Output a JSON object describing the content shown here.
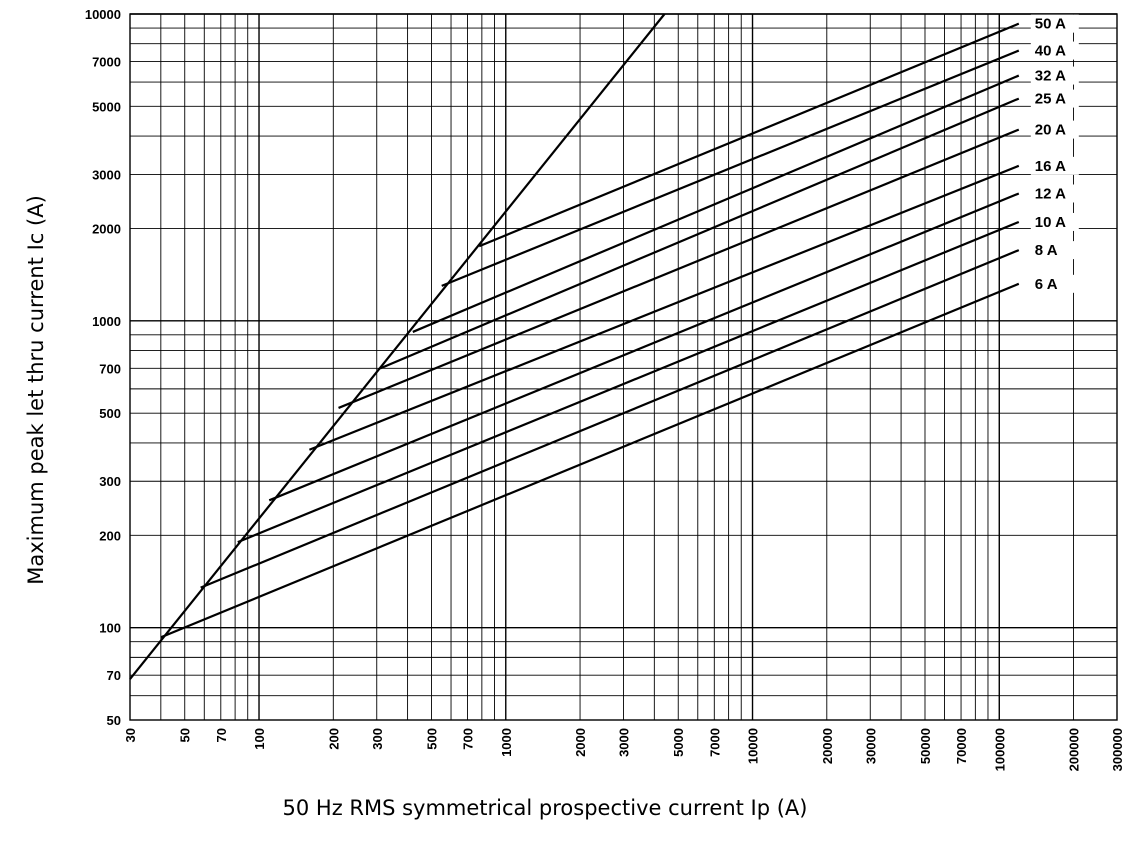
{
  "chart_data": {
    "type": "line",
    "title": "",
    "xlabel": "50 Hz RMS symmetrical prospective current Ip (A)",
    "ylabel": "Maximum peak let thru current Ic (A)",
    "x_scale": "log",
    "y_scale": "log",
    "xlim": [
      30,
      300000
    ],
    "ylim": [
      50,
      10000
    ],
    "grid": true,
    "x_tick_labels": [
      "30",
      "50",
      "70",
      "100",
      "200",
      "300",
      "500",
      "700",
      "1000",
      "2000",
      "3000",
      "5000",
      "7000",
      "10000",
      "20000",
      "30000",
      "50000",
      "70000",
      "100000",
      "200000",
      "300000"
    ],
    "y_tick_labels": [
      "50",
      "70",
      "100",
      "200",
      "300",
      "500",
      "700",
      "1000",
      "2000",
      "3000",
      "5000",
      "7000",
      "10000"
    ],
    "envelope": {
      "x": [
        30,
        4400
      ],
      "y": [
        68,
        10000
      ]
    },
    "series": [
      {
        "name": "50 A",
        "x": [
          780,
          120000
        ],
        "y": [
          1750,
          9300
        ]
      },
      {
        "name": "40 A",
        "x": [
          550,
          120000
        ],
        "y": [
          1300,
          7600
        ]
      },
      {
        "name": "32 A",
        "x": [
          420,
          120000
        ],
        "y": [
          920,
          6300
        ]
      },
      {
        "name": "25 A",
        "x": [
          310,
          120000
        ],
        "y": [
          700,
          5300
        ]
      },
      {
        "name": "20 A",
        "x": [
          210,
          120000
        ],
        "y": [
          520,
          4200
        ]
      },
      {
        "name": "16 A",
        "x": [
          160,
          120000
        ],
        "y": [
          380,
          3200
        ]
      },
      {
        "name": "12 A",
        "x": [
          110,
          120000
        ],
        "y": [
          260,
          2600
        ]
      },
      {
        "name": "10 A",
        "x": [
          82,
          120000
        ],
        "y": [
          190,
          2100
        ]
      },
      {
        "name": "8 A",
        "x": [
          58,
          120000
        ],
        "y": [
          135,
          1700
        ]
      },
      {
        "name": "6 A",
        "x": [
          40,
          120000
        ],
        "y": [
          93,
          1320
        ]
      }
    ]
  }
}
